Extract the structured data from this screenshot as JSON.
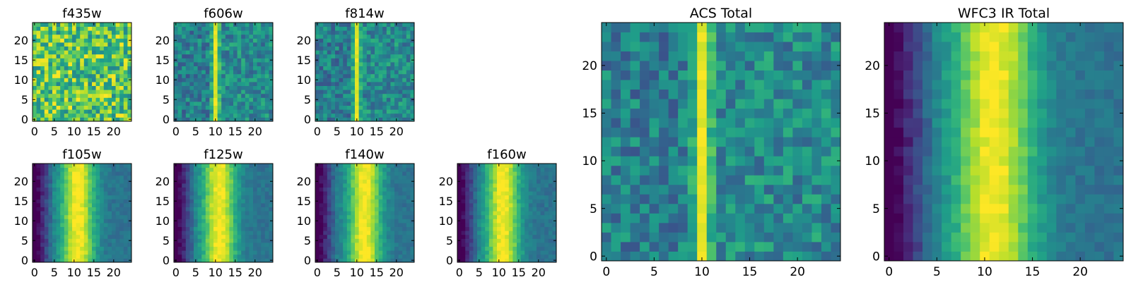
{
  "chart_data": [
    {
      "type": "heatmap",
      "title": "f435w",
      "colormap": "viridis",
      "grid": false,
      "x_range": [
        0,
        24
      ],
      "y_range": [
        0,
        24
      ],
      "x_ticks": [
        0,
        5,
        10,
        15,
        20
      ],
      "x_tick_labels": [
        "0",
        "5",
        "10",
        "15",
        "20"
      ],
      "y_ticks": [
        0,
        5,
        10,
        15,
        20
      ],
      "y_tick_labels": [
        "0",
        "5",
        "10",
        "15",
        "20"
      ],
      "profile": "noise-high",
      "stripe_center": null,
      "note": "25x25 pixel cutout, nearly uniform bright noise"
    },
    {
      "type": "heatmap",
      "title": "f606w",
      "colormap": "viridis",
      "grid": false,
      "x_range": [
        0,
        24
      ],
      "y_range": [
        0,
        24
      ],
      "x_ticks": [
        0,
        5,
        10,
        15,
        20
      ],
      "x_tick_labels": [
        "0",
        "5",
        "10",
        "15",
        "20"
      ],
      "y_ticks": [
        0,
        5,
        10,
        15,
        20
      ],
      "y_tick_labels": [
        "0",
        "5",
        "10",
        "15",
        "20"
      ],
      "profile": "narrow-stripe",
      "stripe_center": 10,
      "note": "bright vertical stripe near x=10"
    },
    {
      "type": "heatmap",
      "title": "f814w",
      "colormap": "viridis",
      "grid": false,
      "x_range": [
        0,
        24
      ],
      "y_range": [
        0,
        24
      ],
      "x_ticks": [
        0,
        5,
        10,
        15,
        20
      ],
      "x_tick_labels": [
        "0",
        "5",
        "10",
        "15",
        "20"
      ],
      "y_ticks": [
        0,
        5,
        10,
        15,
        20
      ],
      "y_tick_labels": [
        "0",
        "5",
        "10",
        "15",
        "20"
      ],
      "profile": "narrow-stripe",
      "stripe_center": 10,
      "note": "bright vertical stripe near x=10"
    },
    {
      "type": "heatmap",
      "title": "f105w",
      "colormap": "viridis",
      "grid": false,
      "x_range": [
        0,
        24
      ],
      "y_range": [
        0,
        24
      ],
      "x_ticks": [
        0,
        5,
        10,
        15,
        20
      ],
      "x_tick_labels": [
        "0",
        "5",
        "10",
        "15",
        "20"
      ],
      "y_ticks": [
        0,
        5,
        10,
        15,
        20
      ],
      "y_tick_labels": [
        "0",
        "5",
        "10",
        "15",
        "20"
      ],
      "profile": "broad",
      "stripe_center": 11,
      "note": "broad bright band x=9-14, dark left edge"
    },
    {
      "type": "heatmap",
      "title": "f125w",
      "colormap": "viridis",
      "grid": false,
      "x_range": [
        0,
        24
      ],
      "y_range": [
        0,
        24
      ],
      "x_ticks": [
        0,
        5,
        10,
        15,
        20
      ],
      "x_tick_labels": [
        "0",
        "5",
        "10",
        "15",
        "20"
      ],
      "y_ticks": [
        0,
        5,
        10,
        15,
        20
      ],
      "y_tick_labels": [
        "0",
        "5",
        "10",
        "15",
        "20"
      ],
      "profile": "broad",
      "stripe_center": 11,
      "note": "broad bright band x=9-14"
    },
    {
      "type": "heatmap",
      "title": "f140w",
      "colormap": "viridis",
      "grid": false,
      "x_range": [
        0,
        24
      ],
      "y_range": [
        0,
        24
      ],
      "x_ticks": [
        0,
        5,
        10,
        15,
        20
      ],
      "x_tick_labels": [
        "0",
        "5",
        "10",
        "15",
        "20"
      ],
      "y_ticks": [
        0,
        5,
        10,
        15,
        20
      ],
      "y_tick_labels": [
        "0",
        "5",
        "10",
        "15",
        "20"
      ],
      "profile": "broad",
      "stripe_center": 12,
      "note": "broad bright band x=9-15"
    },
    {
      "type": "heatmap",
      "title": "f160w",
      "colormap": "viridis",
      "grid": false,
      "x_range": [
        0,
        24
      ],
      "y_range": [
        0,
        24
      ],
      "x_ticks": [
        0,
        5,
        10,
        15,
        20
      ],
      "x_tick_labels": [
        "0",
        "5",
        "10",
        "15",
        "20"
      ],
      "y_ticks": [
        0,
        5,
        10,
        15,
        20
      ],
      "y_tick_labels": [
        "0",
        "5",
        "10",
        "15",
        "20"
      ],
      "profile": "broad",
      "stripe_center": 11,
      "note": "broad bright band x=8-14, dark left edge"
    },
    {
      "type": "heatmap",
      "title": "ACS Total",
      "colormap": "viridis",
      "grid": false,
      "x_range": [
        0,
        24
      ],
      "y_range": [
        0,
        24
      ],
      "x_ticks": [
        0,
        5,
        10,
        15,
        20
      ],
      "x_tick_labels": [
        "0",
        "5",
        "10",
        "15",
        "20"
      ],
      "y_ticks": [
        0,
        5,
        10,
        15,
        20
      ],
      "y_tick_labels": [
        "0",
        "5",
        "10",
        "15",
        "20"
      ],
      "profile": "narrow-stripe",
      "stripe_center": 10,
      "note": "sharp bright column at x=10"
    },
    {
      "type": "heatmap",
      "title": "WFC3 IR Total",
      "colormap": "viridis",
      "grid": false,
      "x_range": [
        0,
        24
      ],
      "y_range": [
        0,
        24
      ],
      "x_ticks": [
        0,
        5,
        10,
        15,
        20
      ],
      "x_tick_labels": [
        "0",
        "5",
        "10",
        "15",
        "20"
      ],
      "y_ticks": [
        0,
        5,
        10,
        15,
        20
      ],
      "y_tick_labels": [
        "0",
        "5",
        "10",
        "15",
        "20"
      ],
      "profile": "broad",
      "stripe_center": 11,
      "note": "broad bright region x=9-15, dark left edge"
    }
  ]
}
